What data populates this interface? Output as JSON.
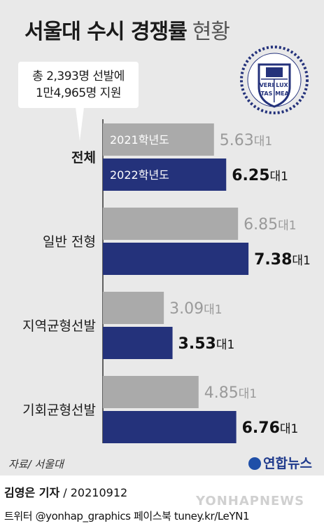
{
  "title": {
    "main": "서울대 수시 경쟁률",
    "sub": "현황"
  },
  "note": {
    "line1": "총 2,393명 선발에",
    "line2": "1만4,965명 지원"
  },
  "seal": {
    "text": [
      "VERI",
      "LUX",
      "TAS",
      "MEA"
    ]
  },
  "colors": {
    "y2021": "#aaaaaa",
    "y2022": "#24327b",
    "value2021": "#9a9a9a",
    "value2022": "#111111",
    "background": "#e9e9e9"
  },
  "chart_data": {
    "type": "bar",
    "orientation": "horizontal",
    "categories": [
      "전체",
      "일반 전형",
      "지역균형선발",
      "기회균형선발"
    ],
    "series": [
      {
        "name": "2021학년도",
        "values": [
          5.63,
          6.85,
          3.09,
          4.85
        ]
      },
      {
        "name": "2022학년도",
        "values": [
          6.25,
          7.38,
          3.53,
          6.76
        ]
      }
    ],
    "value_suffix": "대1",
    "axis_visible": false,
    "grid": false,
    "legend": "inline labels inside first group's bars"
  },
  "source": "자료/ 서울대",
  "agency": "연합뉴스",
  "reporter": {
    "name": "김영은 기자",
    "date": "/ 20210912"
  },
  "sns": "트위터 @yonhap_graphics  페이스북 tuney.kr/LeYN1",
  "watermark": "YONHAPNEWS"
}
